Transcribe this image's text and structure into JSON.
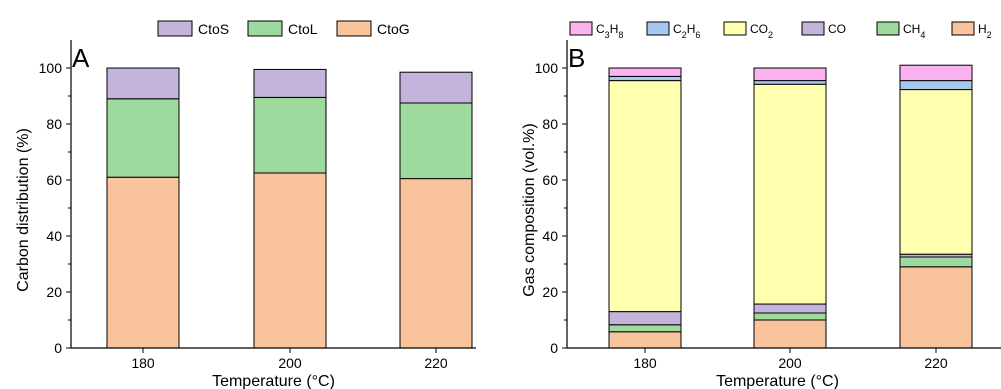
{
  "colors": {
    "CtoS": "#c4b3db",
    "CtoL": "#9ed99e",
    "CtoG": "#f9c49b",
    "C3H8": "#fbb3ef",
    "C2H6": "#a6c8ef",
    "CO2": "#ffffb0",
    "CO": "#c4b3db",
    "CH4": "#9ed99e",
    "H2": "#f9c49b"
  },
  "chart_data": [
    {
      "type": "bar",
      "stacked": true,
      "panel_label": "A",
      "xlabel": "Temperature (°C)",
      "ylabel": "Carbon distribution (%)",
      "categories": [
        "180",
        "200",
        "220"
      ],
      "ylim": [
        0,
        110
      ],
      "yticks": [
        "0",
        "20",
        "40",
        "60",
        "80",
        "100"
      ],
      "legend_position": "top",
      "series": [
        {
          "name": "CtoG",
          "color_key": "CtoG",
          "values": [
            61,
            62.5,
            60.5
          ]
        },
        {
          "name": "CtoL",
          "color_key": "CtoL",
          "values": [
            28,
            27,
            27
          ]
        },
        {
          "name": "CtoS",
          "color_key": "CtoS",
          "values": [
            11,
            10,
            11
          ]
        }
      ],
      "legend_order": [
        "CtoS",
        "CtoL",
        "CtoG"
      ]
    },
    {
      "type": "bar",
      "stacked": true,
      "panel_label": "B",
      "xlabel": "Temperature (°C)",
      "ylabel": "Gas composition (vol.%)",
      "categories": [
        "180",
        "200",
        "220"
      ],
      "ylim": [
        0,
        110
      ],
      "yticks": [
        "0",
        "20",
        "40",
        "60",
        "80",
        "100"
      ],
      "legend_position": "top",
      "series": [
        {
          "name": "H2",
          "sub": "2",
          "color_key": "H2",
          "values": [
            5.8,
            10,
            29
          ]
        },
        {
          "name": "CH4",
          "sub": "4",
          "color_key": "CH4",
          "values": [
            2.5,
            2.5,
            3.5
          ]
        },
        {
          "name": "CO",
          "color_key": "CO",
          "values": [
            4.7,
            3.2,
            1
          ]
        },
        {
          "name": "CO2",
          "sub": "2",
          "color_key": "CO2",
          "values": [
            82.5,
            78.5,
            58.8
          ]
        },
        {
          "name": "C2H6",
          "color_key": "C2H6",
          "values": [
            1.5,
            1.3,
            3.2
          ]
        },
        {
          "name": "C3H8",
          "color_key": "C3H8",
          "values": [
            3,
            4.5,
            5.5
          ]
        }
      ],
      "legend_order": [
        "C3H8",
        "C2H6",
        "CO2",
        "CO",
        "CH4",
        "H2"
      ]
    }
  ]
}
